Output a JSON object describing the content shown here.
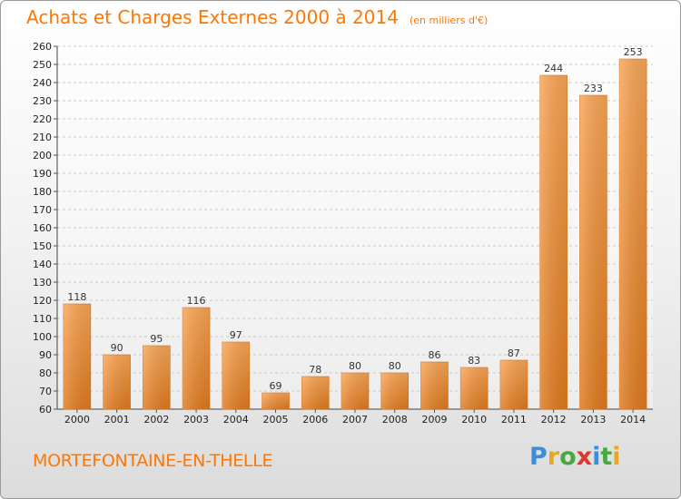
{
  "header": {
    "title": "Achats et Charges Externes 2000 à 2014",
    "unit": "(en milliers d'€)"
  },
  "footer": {
    "location": "MORTEFONTAINE-EN-THELLE"
  },
  "logo": {
    "letters": [
      "P",
      "r",
      "o",
      "x",
      "i",
      "t",
      "i"
    ],
    "colors": [
      "#3a8fd6",
      "#e9a820",
      "#49a842",
      "#d83a2e",
      "#3a8fd6",
      "#49a842",
      "#e9a820"
    ]
  },
  "chart_data": {
    "type": "bar",
    "title": "Achats et Charges Externes 2000 à 2014",
    "subtitle": "(en milliers d'€)",
    "categories": [
      "2000",
      "2001",
      "2002",
      "2003",
      "2004",
      "2005",
      "2006",
      "2007",
      "2008",
      "2009",
      "2010",
      "2011",
      "2012",
      "2013",
      "2014"
    ],
    "values": [
      118,
      90,
      95,
      116,
      97,
      69,
      78,
      80,
      80,
      86,
      83,
      87,
      244,
      233,
      253
    ],
    "ylim": [
      60,
      260
    ],
    "yticks": [
      60,
      70,
      80,
      90,
      100,
      110,
      120,
      130,
      140,
      150,
      160,
      170,
      180,
      190,
      200,
      210,
      220,
      230,
      240,
      250,
      260
    ],
    "grid": true,
    "bar_color": "#f0973a"
  }
}
